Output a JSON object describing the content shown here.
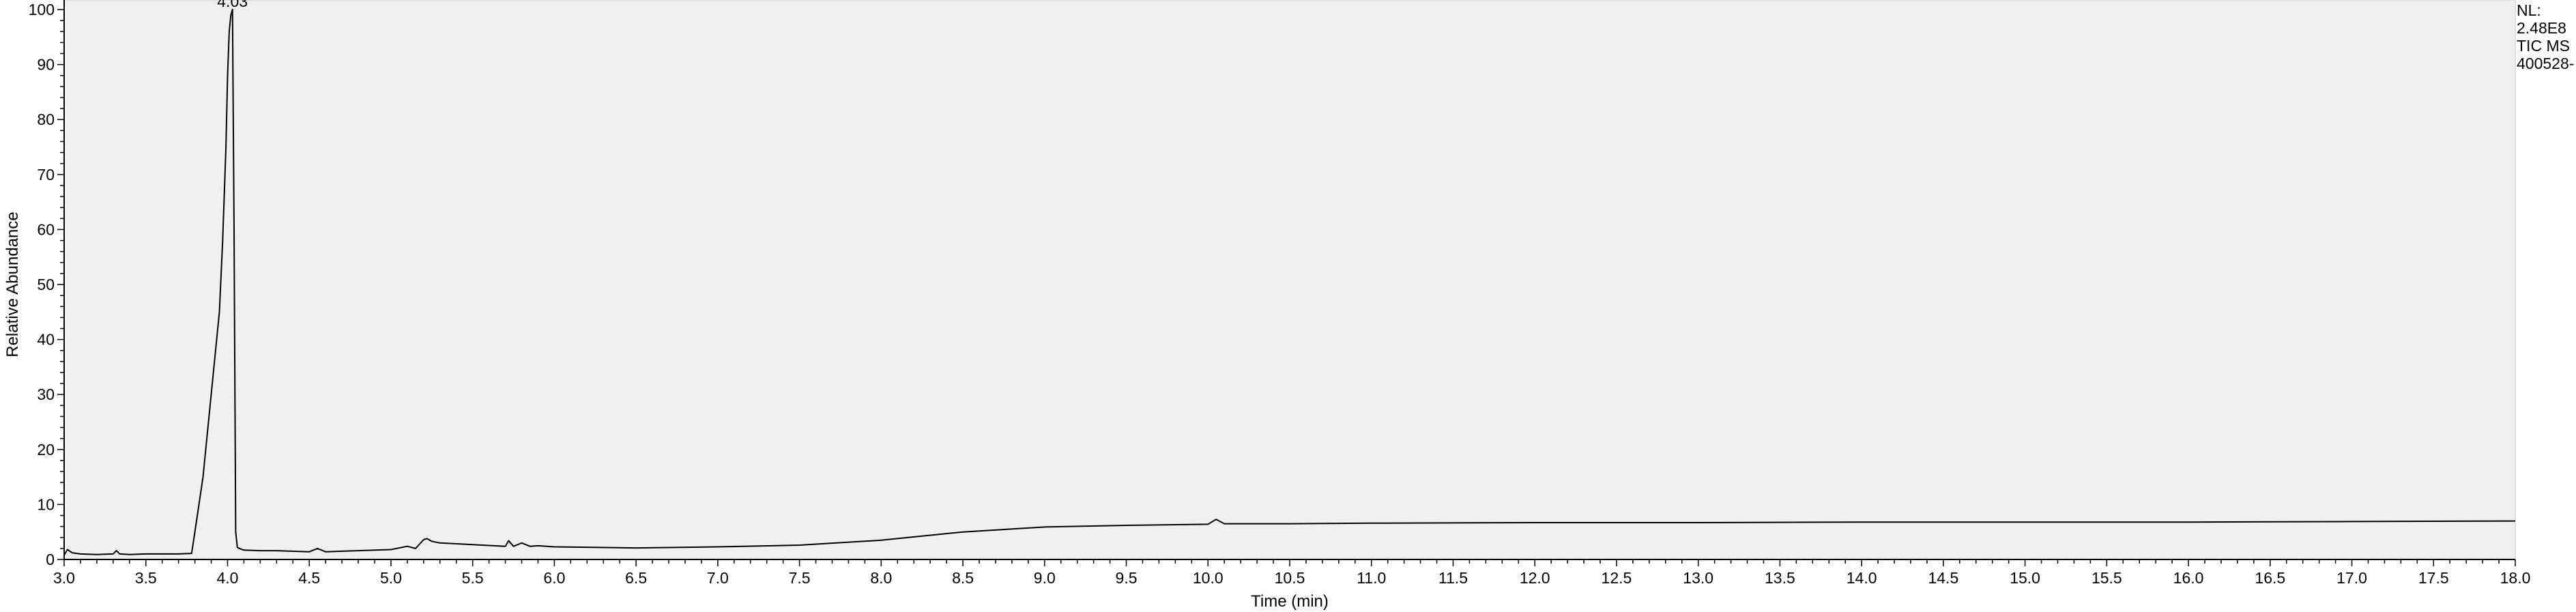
{
  "chart_data": {
    "type": "line",
    "xlabel": "Time (min)",
    "ylabel": "Relative Abundance",
    "xlim": [
      3.0,
      18.0
    ],
    "ylim": [
      0,
      100
    ],
    "x_ticks": [
      "3.0",
      "3.5",
      "4.0",
      "4.5",
      "5.0",
      "5.5",
      "6.0",
      "6.5",
      "7.0",
      "7.5",
      "8.0",
      "8.5",
      "9.0",
      "9.5",
      "10.0",
      "10.5",
      "11.0",
      "11.5",
      "12.0",
      "12.5",
      "13.0",
      "13.5",
      "14.0",
      "14.5",
      "15.0",
      "15.5",
      "16.0",
      "16.5",
      "17.0",
      "17.5",
      "18.0"
    ],
    "y_ticks": [
      "0",
      "10",
      "20",
      "30",
      "40",
      "50",
      "60",
      "70",
      "80",
      "90",
      "100"
    ],
    "grid": false,
    "plot_background": "#f0f0f0",
    "line_color": "#000000",
    "peak_annotations": [
      {
        "x": 4.03,
        "y": 100,
        "label": "4.03"
      }
    ],
    "info_box": [
      "NL:",
      "2.48E8",
      "TIC  MS",
      "400528-"
    ],
    "series": [
      {
        "x": [
          3.0,
          3.02,
          3.05,
          3.1,
          3.2,
          3.3,
          3.32,
          3.34,
          3.4,
          3.5,
          3.6,
          3.7,
          3.78,
          3.8,
          3.85,
          3.9,
          3.95,
          3.97,
          3.99,
          4.0,
          4.01,
          4.02,
          4.03,
          4.04,
          4.05,
          4.06,
          4.08,
          4.1,
          4.2,
          4.3,
          4.5,
          4.55,
          4.6,
          4.7,
          4.8,
          5.0,
          5.1,
          5.15,
          5.2,
          5.22,
          5.25,
          5.3,
          5.5,
          5.7,
          5.72,
          5.75,
          5.8,
          5.85,
          5.9,
          6.0,
          6.5,
          7.0,
          7.5,
          8.0,
          8.5,
          9.0,
          9.5,
          10.0,
          10.05,
          10.1,
          10.5,
          11.0,
          12.0,
          13.0,
          14.0,
          15.0,
          16.0,
          17.0,
          18.0
        ],
        "y": [
          0.8,
          1.8,
          1.2,
          1.0,
          0.9,
          1.0,
          1.6,
          1.0,
          0.9,
          1.0,
          1.0,
          1.0,
          1.1,
          5,
          15,
          30,
          45,
          58,
          75,
          88,
          96,
          99,
          100,
          60,
          5,
          2.2,
          1.9,
          1.7,
          1.6,
          1.6,
          1.4,
          2.0,
          1.4,
          1.5,
          1.6,
          1.8,
          2.4,
          2.0,
          3.6,
          3.8,
          3.3,
          3.0,
          2.7,
          2.4,
          3.4,
          2.4,
          3.0,
          2.4,
          2.5,
          2.3,
          2.1,
          2.3,
          2.6,
          3.5,
          5.0,
          5.9,
          6.2,
          6.4,
          7.3,
          6.5,
          6.5,
          6.6,
          6.7,
          6.7,
          6.8,
          6.8,
          6.8,
          6.9,
          7.0
        ]
      }
    ]
  }
}
